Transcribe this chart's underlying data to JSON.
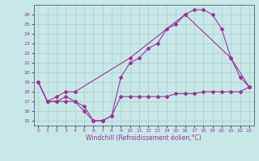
{
  "xlabel": "Windchill (Refroidissement éolien,°C)",
  "bg_color": "#c8e8e8",
  "grid_color": "#aacccc",
  "line_color": "#993399",
  "xlim": [
    -0.5,
    23.5
  ],
  "ylim": [
    14.5,
    27
  ],
  "yticks": [
    15,
    16,
    17,
    18,
    19,
    20,
    21,
    22,
    23,
    24,
    25,
    26
  ],
  "xticks": [
    0,
    1,
    2,
    3,
    4,
    5,
    6,
    7,
    8,
    9,
    10,
    11,
    12,
    13,
    14,
    15,
    16,
    17,
    18,
    19,
    20,
    21,
    22,
    23
  ],
  "line1_x": [
    0,
    1,
    2,
    3,
    4,
    5,
    6,
    7,
    8,
    9,
    10,
    11,
    12,
    13,
    14,
    15,
    16,
    17,
    18,
    19,
    20,
    21,
    22,
    23
  ],
  "line1_y": [
    19,
    17,
    17,
    17,
    17,
    16,
    15,
    15,
    15.5,
    19.5,
    21,
    21.5,
    22.5,
    23,
    24.5,
    25,
    26,
    26.5,
    26.5,
    26,
    24.5,
    21.5,
    19.5,
    18.5
  ],
  "line2_x": [
    0,
    1,
    2,
    3,
    4,
    5,
    6,
    7,
    8,
    9,
    10,
    11,
    12,
    13,
    14,
    15,
    16,
    17,
    18,
    19,
    20,
    21,
    22,
    23
  ],
  "line2_y": [
    19,
    17,
    17,
    17.5,
    17,
    16.5,
    15,
    15,
    15.5,
    17.5,
    17.5,
    17.5,
    17.5,
    17.5,
    17.5,
    17.8,
    17.8,
    17.8,
    18,
    18,
    18,
    18,
    18,
    18.5
  ],
  "line3_x": [
    0,
    1,
    2,
    3,
    4,
    10,
    16,
    21,
    23
  ],
  "line3_y": [
    19,
    17,
    17.5,
    18,
    18,
    21.5,
    26,
    21.5,
    18.5
  ],
  "ylabel_fontsize": 5.5,
  "xlabel_fontsize": 5.5,
  "tick_fontsize": 4.5,
  "linewidth": 0.8,
  "markersize": 2.0
}
